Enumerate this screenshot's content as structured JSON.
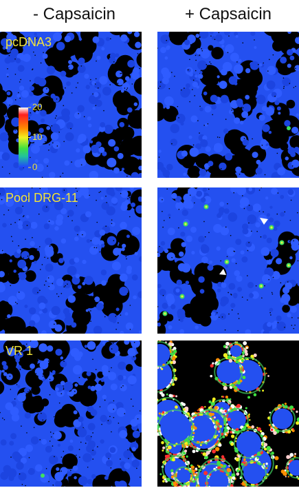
{
  "columns": [
    "- Capsaicin",
    "+ Capsaicin"
  ],
  "rows": [
    "pcDNA3",
    "Pool DRG-11",
    "VR 1"
  ],
  "colorbar": {
    "ticks": [
      20,
      10,
      0
    ]
  }
}
